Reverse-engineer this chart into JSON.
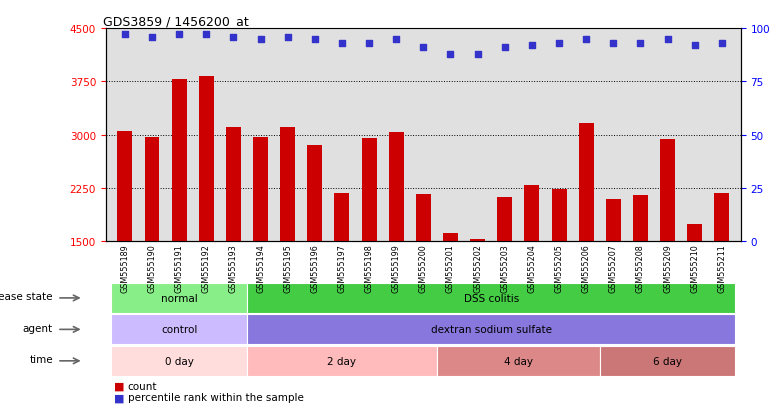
{
  "title": "GDS3859 / 1456200_at",
  "samples": [
    "GSM555189",
    "GSM555190",
    "GSM555191",
    "GSM555192",
    "GSM555193",
    "GSM555194",
    "GSM555195",
    "GSM555196",
    "GSM555197",
    "GSM555198",
    "GSM555199",
    "GSM555200",
    "GSM555201",
    "GSM555202",
    "GSM555203",
    "GSM555204",
    "GSM555205",
    "GSM555206",
    "GSM555207",
    "GSM555208",
    "GSM555209",
    "GSM555210",
    "GSM555211"
  ],
  "counts": [
    3050,
    2960,
    3780,
    3820,
    3100,
    2960,
    3110,
    2860,
    2180,
    2950,
    3030,
    2170,
    1610,
    1530,
    2120,
    2290,
    2230,
    3170,
    2100,
    2150,
    2940,
    1740,
    2180
  ],
  "percentiles": [
    97,
    96,
    97,
    97,
    96,
    95,
    96,
    95,
    93,
    93,
    95,
    91,
    88,
    88,
    91,
    92,
    93,
    95,
    93,
    93,
    95,
    92,
    93
  ],
  "ylim_left": [
    1500,
    4500
  ],
  "ylim_right": [
    0,
    100
  ],
  "yticks_left": [
    1500,
    2250,
    3000,
    3750,
    4500
  ],
  "yticks_right": [
    0,
    25,
    50,
    75,
    100
  ],
  "bar_color": "#cc0000",
  "dot_color": "#3333cc",
  "bg_color": "#e0e0e0",
  "disease_state_groups": [
    {
      "label": "normal",
      "start": 0,
      "end": 5,
      "color": "#88ee88"
    },
    {
      "label": "DSS colitis",
      "start": 5,
      "end": 23,
      "color": "#44cc44"
    }
  ],
  "agent_groups": [
    {
      "label": "control",
      "start": 0,
      "end": 5,
      "color": "#ccbbff"
    },
    {
      "label": "dextran sodium sulfate",
      "start": 5,
      "end": 23,
      "color": "#8877dd"
    }
  ],
  "time_groups": [
    {
      "label": "0 day",
      "start": 0,
      "end": 5,
      "color": "#ffdddd"
    },
    {
      "label": "2 day",
      "start": 5,
      "end": 12,
      "color": "#ffbbbb"
    },
    {
      "label": "4 day",
      "start": 12,
      "end": 18,
      "color": "#dd8888"
    },
    {
      "label": "6 day",
      "start": 18,
      "end": 23,
      "color": "#cc7777"
    }
  ],
  "row_labels": [
    "disease state",
    "agent",
    "time"
  ],
  "legend": [
    {
      "color": "#cc0000",
      "marker": "s",
      "label": "count"
    },
    {
      "color": "#3333cc",
      "marker": "s",
      "label": "percentile rank within the sample"
    }
  ]
}
